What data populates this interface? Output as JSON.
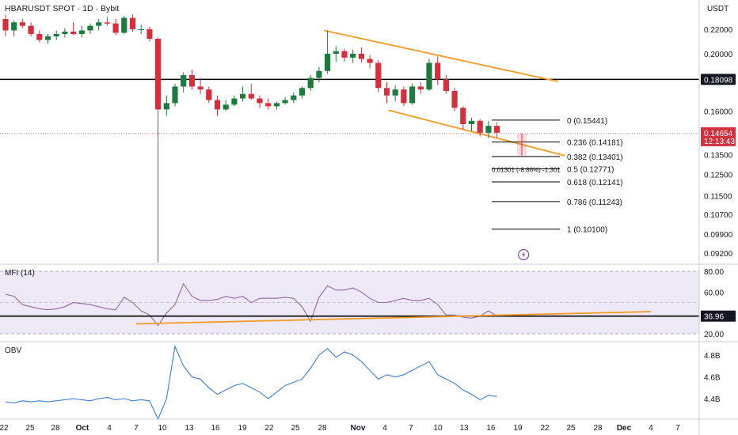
{
  "header": {
    "title": "HBARUSDT SPOT · 1D · Bybit",
    "currency": "USDT"
  },
  "colors": {
    "up": "#1e7a3e",
    "down": "#d3303e",
    "channel": "#f59a23",
    "mfi_line": "#8e6aa6",
    "mfi_band": "#efe8f6",
    "obv_line": "#3b7fd6",
    "level_line": "#000000"
  },
  "price_axis": {
    "ticks": [
      "0.22000",
      "0.20000",
      "0.16000",
      "0.13500",
      "0.12500",
      "0.11500",
      "0.10700",
      "0.09900",
      "0.09200"
    ],
    "level_label": "0.18098",
    "last_price": "0.14654",
    "countdown": "12:13:43"
  },
  "fib_levels": [
    {
      "label": "0 (0.15441)"
    },
    {
      "label": "0.236 (0.14181)"
    },
    {
      "label": "0.382 (0.13401)"
    },
    {
      "label": "0.5 (0.12771)"
    },
    {
      "label": "0.618 (0.12141)"
    },
    {
      "label": "0.786 (0.11243)"
    },
    {
      "label": "1 (0.10100)"
    }
  ],
  "measure_label": "0.01301 (-8.86%) -1,301",
  "mfi": {
    "title": "MFI (14)",
    "ticks": [
      "80.00",
      "60.00",
      "20.00"
    ],
    "level_label": "36.96"
  },
  "obv": {
    "title": "OBV",
    "ticks": [
      "4.8B",
      "4.6B",
      "4.4B"
    ]
  },
  "time_axis": [
    "22",
    "25",
    "28",
    "Oct",
    "4",
    "7",
    "10",
    "13",
    "16",
    "19",
    "22",
    "25",
    "28",
    "Nov",
    "4",
    "7",
    "10",
    "13",
    "16",
    "19",
    "22",
    "25",
    "28",
    "Dec",
    "4",
    "7"
  ],
  "chart_data": [
    {
      "type": "candlestick",
      "title": "HBARUSDT SPOT · 1D · Bybit",
      "ylabel": "USDT",
      "ylim": [
        0.088,
        0.236
      ],
      "y_scale": "log",
      "candles": [
        [
          0.229,
          0.233,
          0.214,
          0.219
        ],
        [
          0.219,
          0.228,
          0.214,
          0.226
        ],
        [
          0.226,
          0.229,
          0.221,
          0.223
        ],
        [
          0.223,
          0.226,
          0.214,
          0.216
        ],
        [
          0.216,
          0.219,
          0.209,
          0.211
        ],
        [
          0.211,
          0.216,
          0.208,
          0.214
        ],
        [
          0.214,
          0.219,
          0.211,
          0.216
        ],
        [
          0.216,
          0.221,
          0.213,
          0.218
        ],
        [
          0.218,
          0.226,
          0.215,
          0.216
        ],
        [
          0.216,
          0.223,
          0.213,
          0.219
        ],
        [
          0.219,
          0.225,
          0.216,
          0.223
        ],
        [
          0.223,
          0.229,
          0.219,
          0.226
        ],
        [
          0.226,
          0.231,
          0.223,
          0.225
        ],
        [
          0.225,
          0.229,
          0.215,
          0.217
        ],
        [
          0.217,
          0.232,
          0.216,
          0.23
        ],
        [
          0.23,
          0.233,
          0.218,
          0.22
        ],
        [
          0.22,
          0.224,
          0.216,
          0.22
        ],
        [
          0.22,
          0.222,
          0.21,
          0.212
        ],
        [
          0.212,
          0.213,
          0.08,
          0.161
        ],
        [
          0.161,
          0.17,
          0.157,
          0.165
        ],
        [
          0.165,
          0.178,
          0.163,
          0.176
        ],
        [
          0.176,
          0.186,
          0.172,
          0.184
        ],
        [
          0.184,
          0.188,
          0.174,
          0.176
        ],
        [
          0.176,
          0.182,
          0.171,
          0.174
        ],
        [
          0.174,
          0.176,
          0.165,
          0.167
        ],
        [
          0.167,
          0.17,
          0.157,
          0.161
        ],
        [
          0.161,
          0.167,
          0.16,
          0.164
        ],
        [
          0.164,
          0.17,
          0.163,
          0.168
        ],
        [
          0.168,
          0.176,
          0.166,
          0.171
        ],
        [
          0.171,
          0.178,
          0.167,
          0.168
        ],
        [
          0.168,
          0.17,
          0.162,
          0.165
        ],
        [
          0.165,
          0.168,
          0.161,
          0.163
        ],
        [
          0.163,
          0.166,
          0.161,
          0.165
        ],
        [
          0.165,
          0.169,
          0.164,
          0.167
        ],
        [
          0.167,
          0.172,
          0.165,
          0.17
        ],
        [
          0.17,
          0.176,
          0.168,
          0.175
        ],
        [
          0.175,
          0.184,
          0.173,
          0.182
        ],
        [
          0.182,
          0.19,
          0.179,
          0.187
        ],
        [
          0.187,
          0.219,
          0.185,
          0.2
        ],
        [
          0.2,
          0.206,
          0.194,
          0.202
        ],
        [
          0.202,
          0.204,
          0.194,
          0.197
        ],
        [
          0.197,
          0.203,
          0.193,
          0.2
        ],
        [
          0.2,
          0.205,
          0.193,
          0.196
        ],
        [
          0.196,
          0.199,
          0.189,
          0.193
        ],
        [
          0.193,
          0.195,
          0.172,
          0.175
        ],
        [
          0.175,
          0.179,
          0.165,
          0.17
        ],
        [
          0.17,
          0.177,
          0.166,
          0.174
        ],
        [
          0.174,
          0.176,
          0.163,
          0.165
        ],
        [
          0.165,
          0.178,
          0.164,
          0.176
        ],
        [
          0.176,
          0.179,
          0.171,
          0.174
        ],
        [
          0.174,
          0.196,
          0.173,
          0.193
        ],
        [
          0.193,
          0.198,
          0.177,
          0.181
        ],
        [
          0.181,
          0.184,
          0.171,
          0.173
        ],
        [
          0.173,
          0.175,
          0.16,
          0.162
        ],
        [
          0.162,
          0.163,
          0.149,
          0.152
        ],
        [
          0.152,
          0.156,
          0.148,
          0.154
        ],
        [
          0.154,
          0.155,
          0.145,
          0.147
        ],
        [
          0.147,
          0.154,
          0.144,
          0.151
        ],
        [
          0.151,
          0.153,
          0.144,
          0.147
        ]
      ]
    },
    {
      "type": "line",
      "title": "MFI (14)",
      "ylim": [
        15,
        85
      ],
      "values": [
        58,
        56,
        48,
        46,
        44,
        43,
        44,
        46,
        50,
        49,
        48,
        46,
        44,
        43,
        55,
        50,
        42,
        38,
        28,
        40,
        48,
        68,
        56,
        52,
        52,
        53,
        56,
        54,
        56,
        50,
        54,
        54,
        54,
        55,
        54,
        46,
        32,
        55,
        66,
        62,
        62,
        64,
        60,
        54,
        50,
        50,
        52,
        54,
        52,
        52,
        54,
        48,
        38,
        38,
        36,
        35,
        37,
        42,
        37
      ]
    },
    {
      "type": "line",
      "title": "OBV",
      "ylim": [
        4.3,
        4.9
      ],
      "values": [
        4.37,
        4.36,
        4.38,
        4.37,
        4.38,
        4.37,
        4.38,
        4.39,
        4.4,
        4.39,
        4.38,
        4.4,
        4.41,
        4.39,
        4.4,
        4.38,
        4.39,
        4.38,
        4.18,
        4.4,
        4.88,
        4.7,
        4.6,
        4.58,
        4.5,
        4.44,
        4.48,
        4.52,
        4.54,
        4.5,
        4.46,
        4.4,
        4.46,
        4.52,
        4.55,
        4.58,
        4.68,
        4.8,
        4.86,
        4.78,
        4.83,
        4.8,
        4.74,
        4.66,
        4.58,
        4.62,
        4.6,
        4.62,
        4.66,
        4.7,
        4.74,
        4.62,
        4.58,
        4.54,
        4.48,
        4.44,
        4.39,
        4.43,
        4.42
      ]
    }
  ]
}
